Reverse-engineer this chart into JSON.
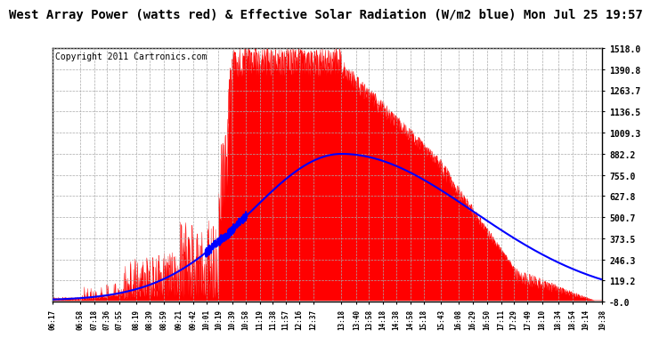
{
  "title": "West Array Power (watts red) & Effective Solar Radiation (W/m2 blue) Mon Jul 25 19:57",
  "copyright": "Copyright 2011 Cartronics.com",
  "yticks": [
    1518.0,
    1390.8,
    1263.7,
    1136.5,
    1009.3,
    882.2,
    755.0,
    627.8,
    500.7,
    373.5,
    246.3,
    119.2,
    -8.0
  ],
  "ymin": -8.0,
  "ymax": 1518.0,
  "bg_color": "#ffffff",
  "plot_bg": "#ffffff",
  "grid_color": "#aaaaaa",
  "red_color": "#ff0000",
  "blue_color": "#0000ff",
  "title_fontsize": 10,
  "copyright_fontsize": 7,
  "xtick_labels": [
    "06:17",
    "06:58",
    "07:18",
    "07:36",
    "07:55",
    "08:19",
    "08:39",
    "08:59",
    "09:21",
    "09:42",
    "10:01",
    "10:19",
    "10:39",
    "10:58",
    "11:19",
    "11:38",
    "11:57",
    "12:16",
    "12:37",
    "13:18",
    "13:40",
    "13:58",
    "14:18",
    "14:38",
    "14:58",
    "15:18",
    "15:43",
    "16:08",
    "16:29",
    "16:50",
    "17:11",
    "17:29",
    "17:49",
    "18:10",
    "18:34",
    "18:54",
    "19:14",
    "19:38"
  ]
}
